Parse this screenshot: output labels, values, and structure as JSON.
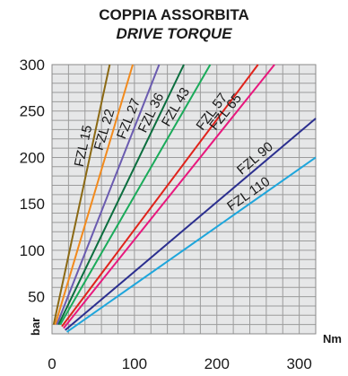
{
  "chart_data": {
    "type": "line",
    "title": "COPPIA ASSORBITA",
    "subtitle": "DRIVE TORQUE",
    "xlabel": "Nm",
    "ylabel": "bar",
    "xlim": [
      0,
      320
    ],
    "ylim": [
      10,
      300
    ],
    "x_ticks": [
      "0",
      "100",
      "200",
      "300"
    ],
    "y_ticks": [
      "50",
      "100",
      "150",
      "200",
      "250",
      "300"
    ],
    "grid": true,
    "series": [
      {
        "name": "FZL 15",
        "color": "#8b6914",
        "x": [
          2,
          70
        ],
        "y": [
          20,
          300
        ]
      },
      {
        "name": "FZL 22",
        "color": "#f28a1c",
        "x": [
          4,
          98
        ],
        "y": [
          20,
          300
        ]
      },
      {
        "name": "FZL 27",
        "color": "#6a5bb0",
        "x": [
          6,
          130
        ],
        "y": [
          20,
          300
        ]
      },
      {
        "name": "FZL 36",
        "color": "#0b6e3e",
        "x": [
          8,
          160
        ],
        "y": [
          20,
          300
        ]
      },
      {
        "name": "FZL 43",
        "color": "#1aab5a",
        "x": [
          10,
          192
        ],
        "y": [
          20,
          300
        ]
      },
      {
        "name": "FZL 57",
        "color": "#e0231c",
        "x": [
          12,
          250
        ],
        "y": [
          18,
          300
        ]
      },
      {
        "name": "FZL 65",
        "color": "#e8187d",
        "x": [
          14,
          270
        ],
        "y": [
          16,
          300
        ]
      },
      {
        "name": "FZL 90",
        "color": "#2b2f8f",
        "x": [
          16,
          320
        ],
        "y": [
          14,
          242
        ]
      },
      {
        "name": "FZL 110",
        "color": "#1ea6dc",
        "x": [
          18,
          320
        ],
        "y": [
          12,
          200
        ]
      }
    ]
  }
}
